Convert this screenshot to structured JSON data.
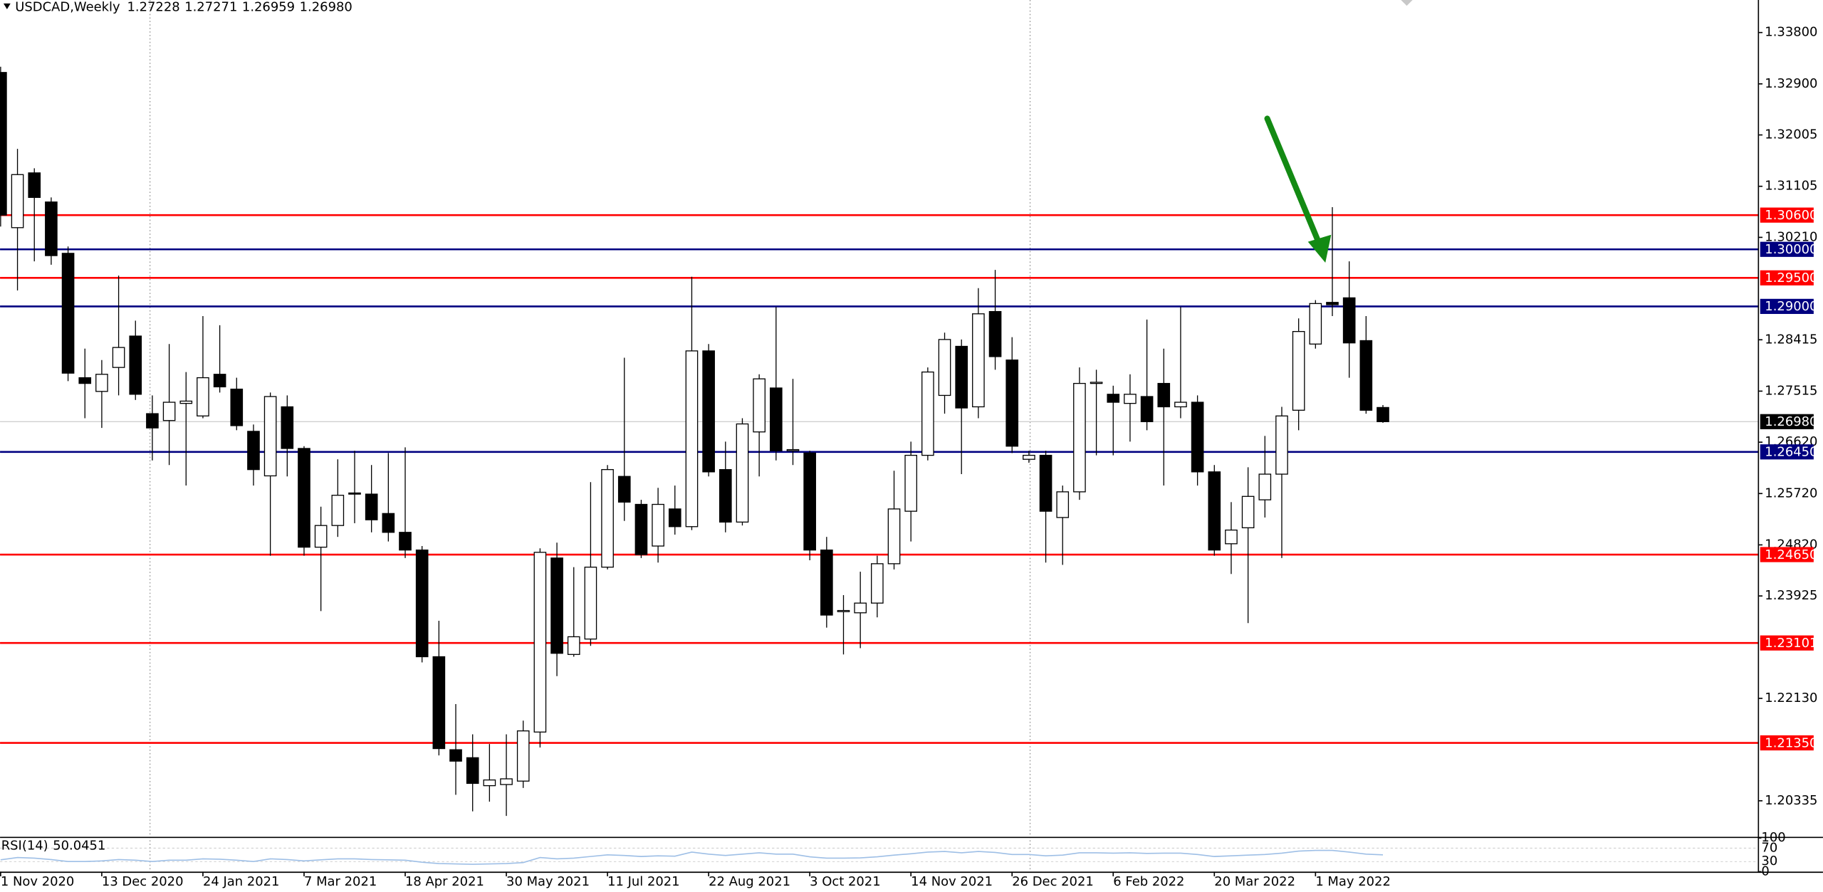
{
  "chart_data": {
    "type": "candlestick",
    "title": "USDCAD,Weekly",
    "header_values": [
      1.27228,
      1.27271,
      1.26959,
      {
        "value": 1.2698,
        "label": "1.26980"
      }
    ],
    "categories": [
      "1 Nov 2020",
      null,
      null,
      null,
      null,
      null,
      "13 Dec 2020",
      null,
      null,
      null,
      null,
      null,
      "24 Jan 2021",
      null,
      null,
      null,
      null,
      null,
      "7 Mar 2021",
      null,
      null,
      null,
      null,
      null,
      "18 Apr 2021",
      null,
      null,
      null,
      null,
      null,
      "30 May 2021",
      null,
      null,
      null,
      null,
      null,
      "11 Jul 2021",
      null,
      null,
      null,
      null,
      null,
      "22 Aug 2021",
      null,
      null,
      null,
      null,
      null,
      "3 Oct 2021",
      null,
      null,
      null,
      null,
      null,
      "14 Nov 2021",
      null,
      null,
      null,
      null,
      null,
      "26 Dec 2021",
      null,
      null,
      null,
      null,
      null,
      "6 Feb 2022",
      null,
      null,
      null,
      null,
      null,
      "20 Mar 2022",
      null,
      null,
      null,
      null,
      null,
      "1 May 2022",
      null,
      null,
      null,
      null
    ],
    "open": [
      1.331,
      1.3038,
      1.3134,
      1.3083,
      1.2993,
      1.2775,
      1.2751,
      1.2793,
      1.2848,
      1.2712,
      1.27,
      1.273,
      1.2708,
      1.2781,
      1.2755,
      1.2681,
      1.2603,
      1.2724,
      1.2651,
      1.2478,
      1.2516,
      1.2573,
      1.2571,
      1.2537,
      1.2504,
      1.2473,
      1.2286,
      1.2123,
      1.2109,
      1.206,
      1.2062,
      1.2068,
      1.2154,
      1.2459,
      1.229,
      1.2317,
      1.2443,
      1.2602,
      1.2553,
      1.248,
      1.2545,
      1.2514,
      1.2822,
      1.2614,
      1.2522,
      1.268,
      1.2757,
      1.2647,
      1.2643,
      1.2473,
      1.2365,
      1.2363,
      1.238,
      1.2449,
      1.2541,
      1.2639,
      1.2744,
      1.283,
      1.2724,
      1.2891,
      1.2806,
      1.2632,
      1.2639,
      1.253,
      1.2575,
      1.2765,
      1.2746,
      1.273,
      1.2742,
      1.2765,
      1.2724,
      1.2732,
      1.261,
      1.2484,
      1.2512,
      1.2561,
      1.2606,
      1.2718,
      1.2834,
      1.2907,
      1.2915,
      1.284,
      1.27228
    ],
    "high": [
      1.332,
      1.3176,
      1.3142,
      1.3091,
      1.3005,
      1.2826,
      1.2806,
      1.2954,
      1.2875,
      1.2744,
      1.2834,
      1.2785,
      1.2883,
      1.2867,
      1.2775,
      1.2693,
      1.2749,
      1.2744,
      1.2655,
      1.2549,
      1.2632,
      1.2647,
      1.2622,
      1.2643,
      1.2653,
      1.248,
      1.2349,
      1.2203,
      1.215,
      1.2133,
      1.215,
      1.2174,
      1.2476,
      1.2486,
      1.2443,
      1.2592,
      1.2622,
      1.281,
      1.2561,
      1.2582,
      1.2586,
      1.2952,
      1.2834,
      1.2663,
      1.2704,
      1.2781,
      1.2899,
      1.2773,
      1.2647,
      1.2496,
      1.2394,
      1.2435,
      1.2463,
      1.2612,
      1.2663,
      1.2793,
      1.2854,
      1.2842,
      1.2932,
      1.2964,
      1.2846,
      1.2647,
      1.2647,
      1.2586,
      1.2793,
      1.2789,
      1.2761,
      1.2781,
      1.2877,
      1.2826,
      1.2899,
      1.2744,
      1.2622,
      1.2557,
      1.2618,
      1.2673,
      1.2724,
      1.2879,
      1.2911,
      1.3074,
      1.2979,
      1.2883,
      1.27271
    ],
    "low": [
      1.304,
      1.2928,
      1.2979,
      1.2973,
      1.2769,
      1.2704,
      1.2687,
      1.2744,
      1.2736,
      1.263,
      1.2622,
      1.2586,
      1.2704,
      1.2749,
      1.2683,
      1.2586,
      1.2463,
      1.2602,
      1.2463,
      1.2366,
      1.2496,
      1.252,
      1.2504,
      1.2488,
      1.2459,
      1.2276,
      1.2113,
      1.2044,
      1.2015,
      1.2032,
      1.2007,
      1.2056,
      1.2127,
      1.2252,
      1.2286,
      1.2305,
      1.2439,
      1.2524,
      1.2459,
      1.2451,
      1.25,
      1.2508,
      1.2602,
      1.2504,
      1.2516,
      1.2602,
      1.263,
      1.2622,
      1.2455,
      1.2337,
      1.229,
      1.2301,
      1.2355,
      1.2439,
      1.2488,
      1.263,
      1.2712,
      1.2606,
      1.2704,
      1.2789,
      1.2643,
      1.2626,
      1.2451,
      1.2447,
      1.2561,
      1.2639,
      1.2639,
      1.2663,
      1.2683,
      1.2586,
      1.2704,
      1.2586,
      1.2463,
      1.2431,
      1.2345,
      1.253,
      1.2459,
      1.2683,
      1.2826,
      1.2883,
      1.2775,
      1.2712,
      1.26959
    ],
    "close": [
      1.306,
      1.3131,
      1.3091,
      1.2989,
      1.2783,
      1.2765,
      1.2781,
      1.2828,
      1.2746,
      1.2687,
      1.2732,
      1.2734,
      1.2775,
      1.2759,
      1.2691,
      1.2614,
      1.2742,
      1.2651,
      1.2478,
      1.2516,
      1.2569,
      1.2571,
      1.2526,
      1.2504,
      1.2473,
      1.2286,
      1.2125,
      1.2103,
      1.2064,
      1.207,
      1.2072,
      1.2156,
      1.2469,
      1.2292,
      1.2321,
      1.2443,
      1.2614,
      1.2557,
      1.2465,
      1.2553,
      1.2514,
      1.2822,
      1.261,
      1.2522,
      1.2694,
      1.2773,
      1.2647,
      1.2649,
      1.2473,
      1.2359,
      1.2367,
      1.238,
      1.2449,
      1.2545,
      1.2639,
      1.2785,
      1.2842,
      1.2722,
      1.2887,
      1.2812,
      1.2655,
      1.2639,
      1.2541,
      1.2575,
      1.2765,
      1.2767,
      1.2732,
      1.2746,
      1.2698,
      1.2724,
      1.2732,
      1.261,
      1.2473,
      1.2508,
      1.2567,
      1.2606,
      1.2708,
      1.2856,
      1.2905,
      1.2903,
      1.2836,
      1.2718,
      1.2698
    ],
    "up_color": "#ffffff",
    "down_color": "#000000",
    "wick_color": "#000000",
    "ylim": [
      1.19704,
      1.3437
    ],
    "yticks": [
      {
        "value": 1.338,
        "label": "1.33800"
      },
      {
        "value": 1.329,
        "label": "1.32900"
      },
      {
        "value": 1.32005,
        "label": "1.32005"
      },
      {
        "value": 1.31105,
        "label": "1.31105"
      },
      {
        "value": 1.3021,
        "label": "1.30210"
      },
      {
        "value": 1.28415,
        "label": "1.28415"
      },
      {
        "value": 1.27515,
        "label": "1.27515"
      },
      {
        "value": 1.2662,
        "label": "1.26620"
      },
      {
        "value": 1.2572,
        "label": "1.25720"
      },
      {
        "value": 1.2482,
        "label": "1.24820"
      },
      {
        "value": 1.23925,
        "label": "1.23925"
      },
      {
        "value": 1.2213,
        "label": "1.22130"
      },
      {
        "value": 1.20335,
        "label": "1.20335"
      }
    ],
    "levels": [
      {
        "value": 1.306,
        "label": "1.30600",
        "color": "#ff0000"
      },
      {
        "value": 1.3,
        "label": "1.30000",
        "color": "#000080"
      },
      {
        "value": 1.295,
        "label": "1.29500",
        "color": "#ff0000"
      },
      {
        "value": 1.29,
        "label": "1.29000",
        "color": "#000080"
      },
      {
        "value": 1.2645,
        "label": "1.26450",
        "color": "#000080"
      },
      {
        "value": 1.2465,
        "label": "1.24650",
        "color": "#ff0000"
      },
      {
        "value": 1.23101,
        "label": "1.23101",
        "color": "#ff0000"
      },
      {
        "value": 1.2135,
        "label": "1.21350",
        "color": "#ff0000"
      }
    ],
    "last": {
      "value": 1.2698,
      "label": "1.26980",
      "color": "#000000"
    },
    "rsi": {
      "name": "RSI(14)",
      "last": 50.0451,
      "color": "#9ebfe6",
      "ylim": [
        0,
        100
      ],
      "yticks": [
        100,
        70,
        30,
        0
      ],
      "values": [
        35,
        42,
        40,
        36,
        30,
        30,
        32,
        36,
        34,
        30,
        34,
        34,
        38,
        37,
        34,
        30,
        38,
        36,
        32,
        35,
        38,
        38,
        36,
        35,
        34,
        28,
        24,
        23,
        22,
        23,
        24,
        27,
        42,
        38,
        40,
        45,
        50,
        48,
        45,
        47,
        46,
        58,
        52,
        48,
        52,
        56,
        52,
        52,
        44,
        40,
        40,
        41,
        44,
        49,
        53,
        58,
        60,
        56,
        60,
        57,
        51,
        51,
        47,
        49,
        56,
        56,
        55,
        56,
        54,
        55,
        55,
        51,
        45,
        47,
        49,
        51,
        55,
        61,
        63,
        63,
        58,
        52,
        50
      ]
    }
  }
}
